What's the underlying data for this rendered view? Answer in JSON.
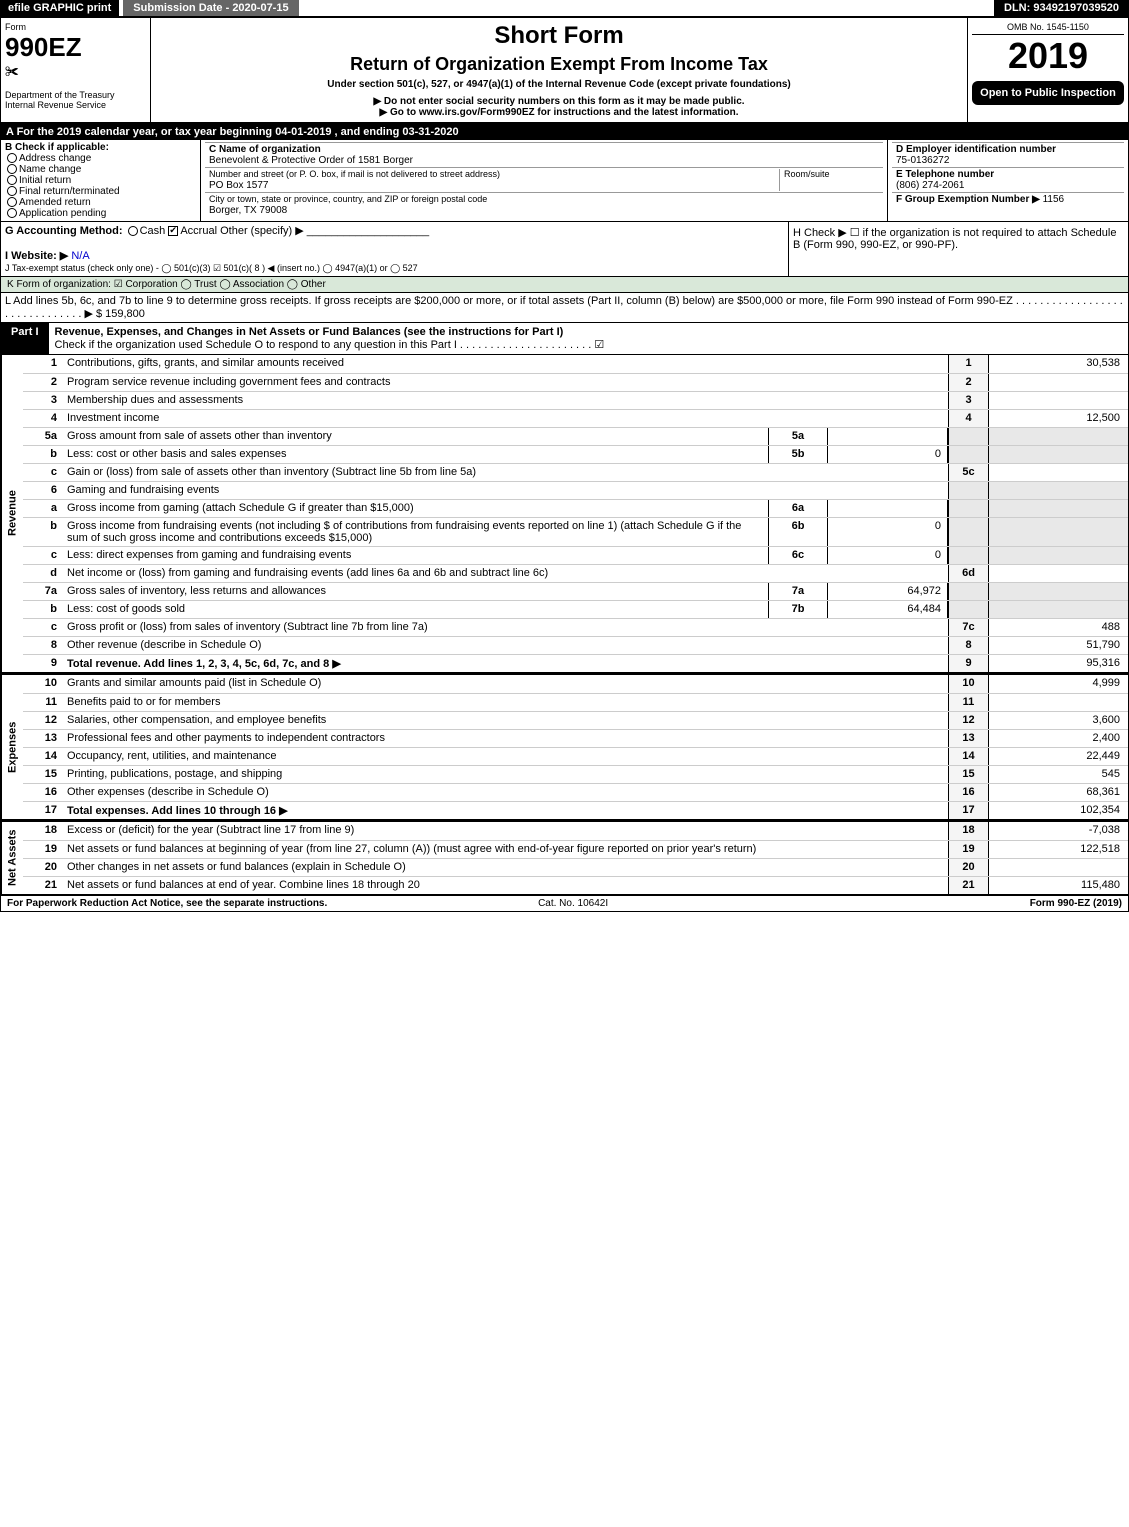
{
  "topbar": {
    "efile": "efile GRAPHIC print",
    "submission": "Submission Date - 2020-07-15",
    "dln": "DLN: 93492197039520"
  },
  "header": {
    "form_label": "Form",
    "form_number": "990EZ",
    "dept": "Department of the Treasury",
    "irs": "Internal Revenue Service",
    "title": "Short Form",
    "subtitle": "Return of Organization Exempt From Income Tax",
    "under": "Under section 501(c), 527, or 4947(a)(1) of the Internal Revenue Code (except private foundations)",
    "dne": "▶ Do not enter social security numbers on this form as it may be made public.",
    "goto": "▶ Go to www.irs.gov/Form990EZ for instructions and the latest information.",
    "omb": "OMB No. 1545-1150",
    "year": "2019",
    "open": "Open to Public Inspection"
  },
  "sectionA": "A For the 2019 calendar year, or tax year beginning 04-01-2019 , and ending 03-31-2020",
  "boxB": {
    "title": "B Check if applicable:",
    "items": [
      "Address change",
      "Name change",
      "Initial return",
      "Final return/terminated",
      "Amended return",
      "Application pending"
    ]
  },
  "boxC": {
    "name_label": "C Name of organization",
    "name": "Benevolent & Protective Order of 1581 Borger",
    "street_label": "Number and street (or P. O. box, if mail is not delivered to street address)",
    "room_label": "Room/suite",
    "street": "PO Box 1577",
    "city_label": "City or town, state or province, country, and ZIP or foreign postal code",
    "city": "Borger, TX  79008"
  },
  "boxD": {
    "ein_label": "D Employer identification number",
    "ein": "75-0136272",
    "tel_label": "E Telephone number",
    "tel": "(806) 274-2061",
    "grp_label": "F Group Exemption Number  ▶",
    "grp": "1156"
  },
  "rowG": {
    "label": "G Accounting Method:",
    "cash": "Cash",
    "accrual": "Accrual",
    "other": "Other (specify) ▶"
  },
  "rowH": "H  Check ▶  ☐  if the organization is not required to attach Schedule B (Form 990, 990-EZ, or 990-PF).",
  "rowI": {
    "label": "I Website: ▶",
    "val": "N/A"
  },
  "rowJ": "J Tax-exempt status (check only one) -  ◯ 501(c)(3)  ☑ 501(c)( 8 ) ◀ (insert no.)  ◯ 4947(a)(1) or  ◯ 527",
  "rowK": "K Form of organization:   ☑ Corporation   ◯ Trust   ◯ Association   ◯ Other",
  "rowL": "L Add lines 5b, 6c, and 7b to line 9 to determine gross receipts. If gross receipts are $200,000 or more, or if total assets (Part II, column (B) below) are $500,000 or more, file Form 990 instead of Form 990-EZ  . . . . . . . . . . . . . . . . . . . . . . . . . . . . . . . ▶ $ 159,800",
  "part1": {
    "label": "Part I",
    "title": "Revenue, Expenses, and Changes in Net Assets or Fund Balances (see the instructions for Part I)",
    "check": "Check if the organization used Schedule O to respond to any question in this Part I . . . . . . . . . . . . . . . . . . . . . .  ☑"
  },
  "sections": {
    "revenue": "Revenue",
    "expenses": "Expenses",
    "netassets": "Net Assets"
  },
  "lines": [
    {
      "n": "1",
      "d": "Contributions, gifts, grants, and similar amounts received",
      "num": "1",
      "v": "30,538"
    },
    {
      "n": "2",
      "d": "Program service revenue including government fees and contracts",
      "num": "2",
      "v": ""
    },
    {
      "n": "3",
      "d": "Membership dues and assessments",
      "num": "3",
      "v": ""
    },
    {
      "n": "4",
      "d": "Investment income",
      "num": "4",
      "v": "12,500"
    },
    {
      "n": "5a",
      "d": "Gross amount from sale of assets other than inventory",
      "mid": "5a",
      "midv": ""
    },
    {
      "n": "b",
      "d": "Less: cost or other basis and sales expenses",
      "mid": "5b",
      "midv": "0"
    },
    {
      "n": "c",
      "d": "Gain or (loss) from sale of assets other than inventory (Subtract line 5b from line 5a)",
      "num": "5c",
      "v": ""
    },
    {
      "n": "6",
      "d": "Gaming and fundraising events"
    },
    {
      "n": "a",
      "d": "Gross income from gaming (attach Schedule G if greater than $15,000)",
      "mid": "6a",
      "midv": ""
    },
    {
      "n": "b",
      "d": "Gross income from fundraising events (not including $                of contributions from fundraising events reported on line 1) (attach Schedule G if the sum of such gross income and contributions exceeds $15,000)",
      "mid": "6b",
      "midv": "0"
    },
    {
      "n": "c",
      "d": "Less: direct expenses from gaming and fundraising events",
      "mid": "6c",
      "midv": "0"
    },
    {
      "n": "d",
      "d": "Net income or (loss) from gaming and fundraising events (add lines 6a and 6b and subtract line 6c)",
      "num": "6d",
      "v": ""
    },
    {
      "n": "7a",
      "d": "Gross sales of inventory, less returns and allowances",
      "mid": "7a",
      "midv": "64,972"
    },
    {
      "n": "b",
      "d": "Less: cost of goods sold",
      "mid": "7b",
      "midv": "64,484"
    },
    {
      "n": "c",
      "d": "Gross profit or (loss) from sales of inventory (Subtract line 7b from line 7a)",
      "num": "7c",
      "v": "488"
    },
    {
      "n": "8",
      "d": "Other revenue (describe in Schedule O)",
      "num": "8",
      "v": "51,790"
    },
    {
      "n": "9",
      "d": "Total revenue. Add lines 1, 2, 3, 4, 5c, 6d, 7c, and 8   ▶",
      "num": "9",
      "v": "95,316",
      "bold": true
    }
  ],
  "exp_lines": [
    {
      "n": "10",
      "d": "Grants and similar amounts paid (list in Schedule O)",
      "num": "10",
      "v": "4,999"
    },
    {
      "n": "11",
      "d": "Benefits paid to or for members",
      "num": "11",
      "v": ""
    },
    {
      "n": "12",
      "d": "Salaries, other compensation, and employee benefits",
      "num": "12",
      "v": "3,600"
    },
    {
      "n": "13",
      "d": "Professional fees and other payments to independent contractors",
      "num": "13",
      "v": "2,400"
    },
    {
      "n": "14",
      "d": "Occupancy, rent, utilities, and maintenance",
      "num": "14",
      "v": "22,449"
    },
    {
      "n": "15",
      "d": "Printing, publications, postage, and shipping",
      "num": "15",
      "v": "545"
    },
    {
      "n": "16",
      "d": "Other expenses (describe in Schedule O)",
      "num": "16",
      "v": "68,361"
    },
    {
      "n": "17",
      "d": "Total expenses. Add lines 10 through 16   ▶",
      "num": "17",
      "v": "102,354",
      "bold": true
    }
  ],
  "net_lines": [
    {
      "n": "18",
      "d": "Excess or (deficit) for the year (Subtract line 17 from line 9)",
      "num": "18",
      "v": "-7,038"
    },
    {
      "n": "19",
      "d": "Net assets or fund balances at beginning of year (from line 27, column (A)) (must agree with end-of-year figure reported on prior year's return)",
      "num": "19",
      "v": "122,518"
    },
    {
      "n": "20",
      "d": "Other changes in net assets or fund balances (explain in Schedule O)",
      "num": "20",
      "v": ""
    },
    {
      "n": "21",
      "d": "Net assets or fund balances at end of year. Combine lines 18 through 20",
      "num": "21",
      "v": "115,480"
    }
  ],
  "footer": {
    "left": "For Paperwork Reduction Act Notice, see the separate instructions.",
    "mid": "Cat. No. 10642I",
    "right": "Form 990-EZ (2019)"
  }
}
